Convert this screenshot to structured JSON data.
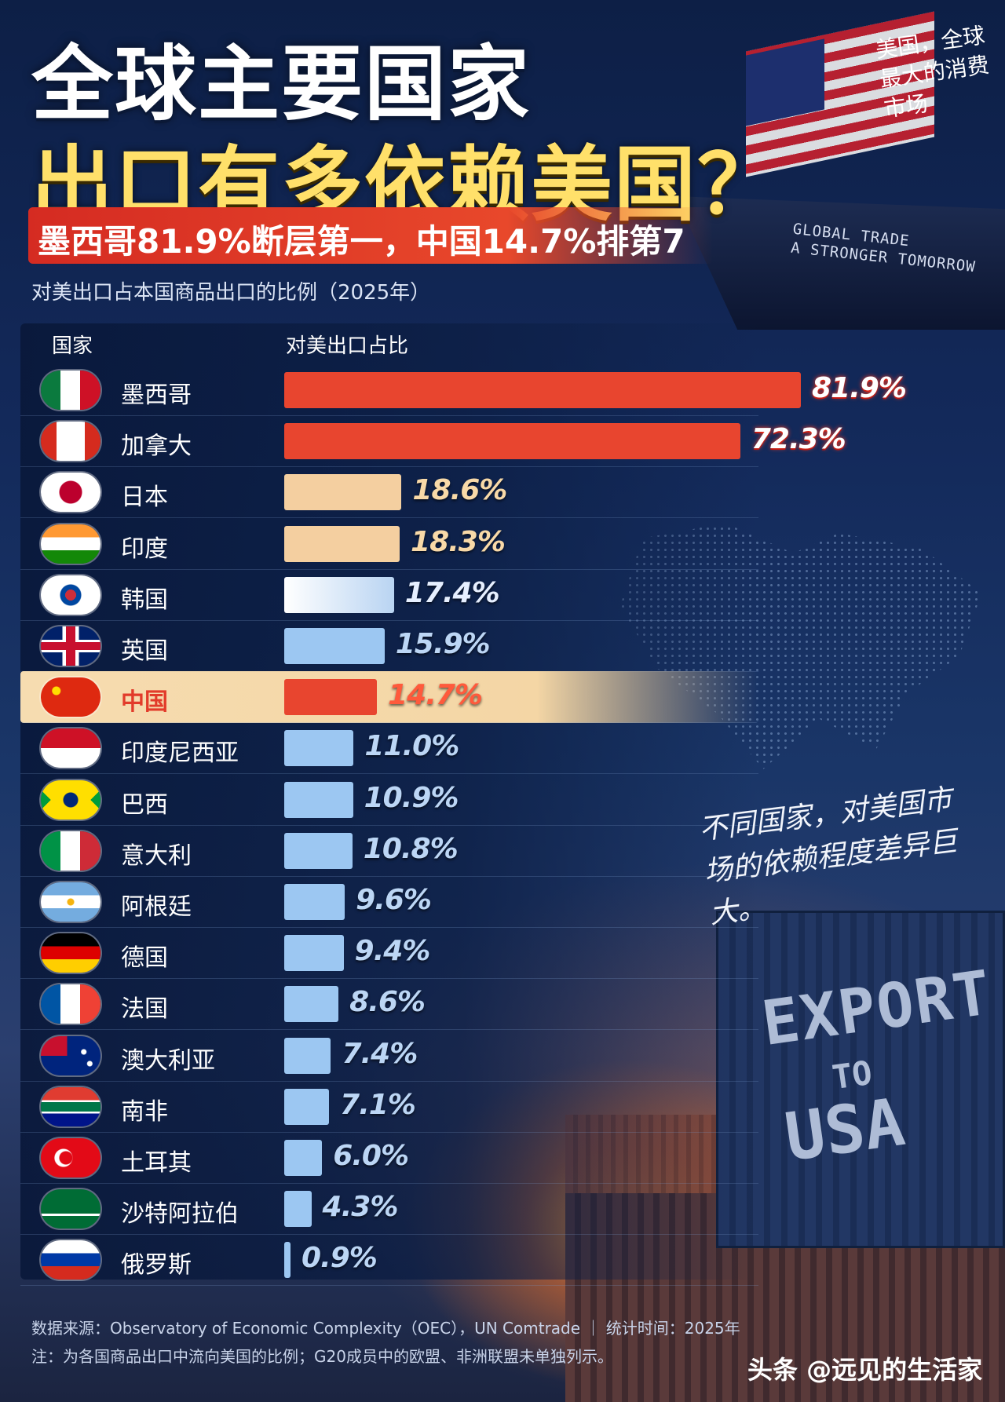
{
  "title_line1": "全球主要国家",
  "title_line2": "出口有多依赖美国？",
  "subtitle": "墨西哥81.9%断层第一，中国14.7%排第7",
  "caption": "对美出口占本国商品出口的比例（2025年）",
  "corner_note": "美国，全球最大的消费市场",
  "ship_text_line1": "GLOBAL TRADE",
  "ship_text_line2": "A STRONGER TOMORROW",
  "slogan": "不同国家，对美国市场的依赖程度差异巨大。",
  "container_text_line1": "EXPORT",
  "container_text_line2": "TO",
  "container_text_line3": "USA",
  "source": "数据来源：Observatory of Economic Complexity（OEC），UN Comtrade ｜ 统计时间：2025年",
  "note": "注：为各国商品出口中流向美国的比例；G20成员中的欧盟、非洲联盟未单独列示。",
  "watermark": "头条 @远见的生活家",
  "colors": {
    "red": "#e8452f",
    "peach": "#f4cfa0",
    "light_blue": "#9cc7f2",
    "highlight_row": "#f4d6a5"
  },
  "chart_data": {
    "type": "bar",
    "orientation": "horizontal",
    "column_headers": [
      "国家",
      "对美出口占比"
    ],
    "unit": "%",
    "xlim": [
      0,
      81.9
    ],
    "highlight": "中国",
    "categories": [
      "墨西哥",
      "加拿大",
      "日本",
      "印度",
      "韩国",
      "英国",
      "中国",
      "印度尼西亚",
      "巴西",
      "意大利",
      "阿根廷",
      "德国",
      "法国",
      "澳大利亚",
      "南非",
      "土耳其",
      "沙特阿拉伯",
      "俄罗斯"
    ],
    "values": [
      81.9,
      72.3,
      18.6,
      18.3,
      17.4,
      15.9,
      14.7,
      11.0,
      10.9,
      10.8,
      9.6,
      9.4,
      8.6,
      7.4,
      7.1,
      6.0,
      4.3,
      0.9
    ],
    "labels": [
      "81.9%",
      "72.3%",
      "18.6%",
      "18.3%",
      "17.4%",
      "15.9%",
      "14.7%",
      "11.0%",
      "10.9%",
      "10.8%",
      "9.6%",
      "9.4%",
      "8.6%",
      "7.4%",
      "7.1%",
      "6.0%",
      "4.3%",
      "0.9%"
    ],
    "flag_icons": [
      "mexico-flag-icon",
      "canada-flag-icon",
      "japan-flag-icon",
      "india-flag-icon",
      "korea-flag-icon",
      "uk-flag-icon",
      "china-flag-icon",
      "indonesia-flag-icon",
      "brazil-flag-icon",
      "italy-flag-icon",
      "argentina-flag-icon",
      "germany-flag-icon",
      "france-flag-icon",
      "australia-flag-icon",
      "south-africa-flag-icon",
      "turkey-flag-icon",
      "saudi-arabia-flag-icon",
      "russia-flag-icon"
    ]
  }
}
